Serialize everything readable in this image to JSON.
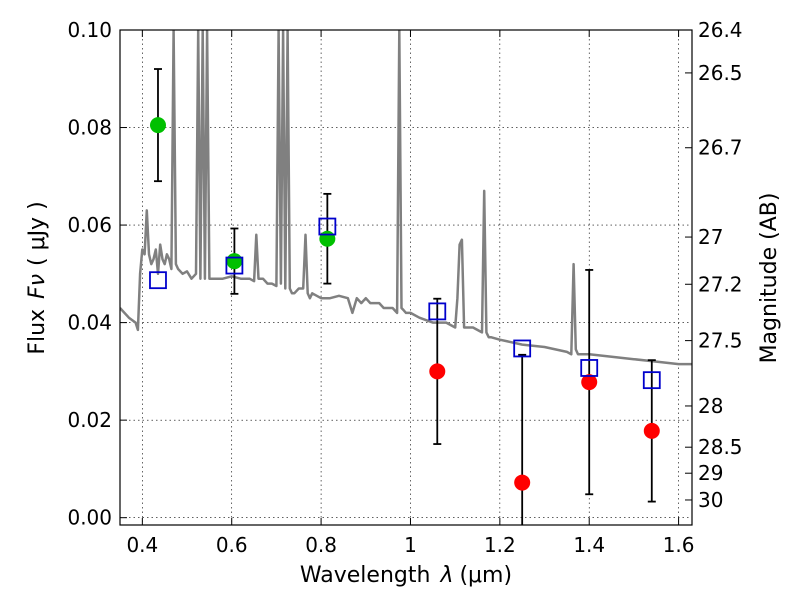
{
  "chart_data": {
    "type": "scatter",
    "xlabel": "Wavelength",
    "xlabel_symbol": "λ",
    "xlabel_unit": "(μm)",
    "ylabel": "Flux",
    "ylabel_symbol": "Fν",
    "ylabel_unit": "( μJy )",
    "ylabel_right": "Magnitude (AB)",
    "xlim": [
      0.35,
      1.63
    ],
    "ylim": [
      -0.0015,
      0.1
    ],
    "grid": true,
    "x_ticks": [
      {
        "value": 0.4,
        "label": "0.4"
      },
      {
        "value": 0.6,
        "label": "0.6"
      },
      {
        "value": 0.8,
        "label": "0.8"
      },
      {
        "value": 1.0,
        "label": "1"
      },
      {
        "value": 1.2,
        "label": "1.2"
      },
      {
        "value": 1.4,
        "label": "1.4"
      },
      {
        "value": 1.6,
        "label": "1.6"
      }
    ],
    "y_ticks": [
      {
        "value": 0.0,
        "label": "0.00"
      },
      {
        "value": 0.02,
        "label": "0.02"
      },
      {
        "value": 0.04,
        "label": "0.04"
      },
      {
        "value": 0.06,
        "label": "0.06"
      },
      {
        "value": 0.08,
        "label": "0.08"
      },
      {
        "value": 0.1,
        "label": "0.10"
      }
    ],
    "mag_ticks": [
      {
        "value": 26.4,
        "label": "26.4"
      },
      {
        "value": 26.5,
        "label": "26.5"
      },
      {
        "value": 26.7,
        "label": "26.7"
      },
      {
        "value": 27,
        "label": "27"
      },
      {
        "value": 27.2,
        "label": "27.2"
      },
      {
        "value": 27.5,
        "label": "27.5"
      },
      {
        "value": 28,
        "label": "28"
      },
      {
        "value": 28.5,
        "label": "28.5"
      },
      {
        "value": 29,
        "label": "29"
      },
      {
        "value": 30,
        "label": "30"
      }
    ],
    "series": [
      {
        "marker": "circle",
        "color": "#00c000",
        "points": [
          {
            "x": 0.435,
            "y": 0.0805,
            "err": 0.0115
          },
          {
            "x": 0.606,
            "y": 0.0526,
            "err": 0.0067
          },
          {
            "x": 0.814,
            "y": 0.0572,
            "err": 0.0092
          }
        ]
      },
      {
        "marker": "circle",
        "color": "#ff0000",
        "points": [
          {
            "x": 1.06,
            "y": 0.03,
            "err": 0.0149
          },
          {
            "x": 1.25,
            "y": 0.0072,
            "err": 0.0262
          },
          {
            "x": 1.4,
            "y": 0.0278,
            "err": 0.023
          },
          {
            "x": 1.54,
            "y": 0.0178,
            "err": 0.0145
          }
        ]
      },
      {
        "marker": "square",
        "color": "#0000cc",
        "points": [
          {
            "x": 0.435,
            "y": 0.0487
          },
          {
            "x": 0.606,
            "y": 0.0517
          },
          {
            "x": 0.814,
            "y": 0.0597
          },
          {
            "x": 1.06,
            "y": 0.0423
          },
          {
            "x": 1.25,
            "y": 0.0347
          },
          {
            "x": 1.4,
            "y": 0.0307
          },
          {
            "x": 1.54,
            "y": 0.0282
          }
        ]
      }
    ],
    "spectrum": {
      "color": "#808080",
      "x": [
        0.35,
        0.37,
        0.385,
        0.39,
        0.395,
        0.4,
        0.405,
        0.41,
        0.415,
        0.42,
        0.425,
        0.43,
        0.435,
        0.44,
        0.445,
        0.45,
        0.455,
        0.46,
        0.465,
        0.47,
        0.475,
        0.48,
        0.49,
        0.5,
        0.51,
        0.52,
        0.525,
        0.53,
        0.535,
        0.54,
        0.545,
        0.55,
        0.56,
        0.58,
        0.6,
        0.62,
        0.64,
        0.65,
        0.655,
        0.66,
        0.67,
        0.68,
        0.69,
        0.7,
        0.705,
        0.71,
        0.715,
        0.72,
        0.725,
        0.73,
        0.735,
        0.74,
        0.75,
        0.76,
        0.765,
        0.77,
        0.775,
        0.78,
        0.8,
        0.82,
        0.84,
        0.86,
        0.87,
        0.88,
        0.89,
        0.9,
        0.91,
        0.92,
        0.93,
        0.94,
        0.95,
        0.96,
        0.97,
        0.975,
        0.98,
        0.985,
        0.99,
        1.0,
        1.02,
        1.05,
        1.08,
        1.1,
        1.105,
        1.11,
        1.115,
        1.12,
        1.14,
        1.16,
        1.165,
        1.17,
        1.175,
        1.18,
        1.2,
        1.25,
        1.3,
        1.35,
        1.36,
        1.365,
        1.37,
        1.375,
        1.38,
        1.4,
        1.45,
        1.5,
        1.55,
        1.6,
        1.63
      ],
      "y": [
        0.043,
        0.041,
        0.04,
        0.0385,
        0.05,
        0.055,
        0.054,
        0.063,
        0.054,
        0.052,
        0.053,
        0.055,
        0.05,
        0.056,
        0.053,
        0.052,
        0.054,
        0.053,
        0.051,
        0.1,
        0.052,
        0.051,
        0.05,
        0.0505,
        0.049,
        0.05,
        0.1,
        0.049,
        0.1,
        0.049,
        0.1,
        0.049,
        0.049,
        0.049,
        0.0495,
        0.049,
        0.049,
        0.0485,
        0.058,
        0.049,
        0.049,
        0.048,
        0.048,
        0.0475,
        0.1,
        0.048,
        0.1,
        0.047,
        0.1,
        0.047,
        0.046,
        0.046,
        0.047,
        0.047,
        0.058,
        0.046,
        0.045,
        0.046,
        0.045,
        0.045,
        0.0455,
        0.045,
        0.042,
        0.045,
        0.044,
        0.045,
        0.044,
        0.044,
        0.044,
        0.043,
        0.043,
        0.043,
        0.042,
        0.1,
        0.043,
        0.0425,
        0.042,
        0.042,
        0.041,
        0.04,
        0.04,
        0.039,
        0.045,
        0.056,
        0.057,
        0.039,
        0.039,
        0.038,
        0.067,
        0.038,
        0.037,
        0.037,
        0.0365,
        0.0355,
        0.035,
        0.034,
        0.0335,
        0.052,
        0.0345,
        0.0335,
        0.0335,
        0.0335,
        0.033,
        0.0325,
        0.032,
        0.0315,
        0.0315
      ]
    }
  }
}
